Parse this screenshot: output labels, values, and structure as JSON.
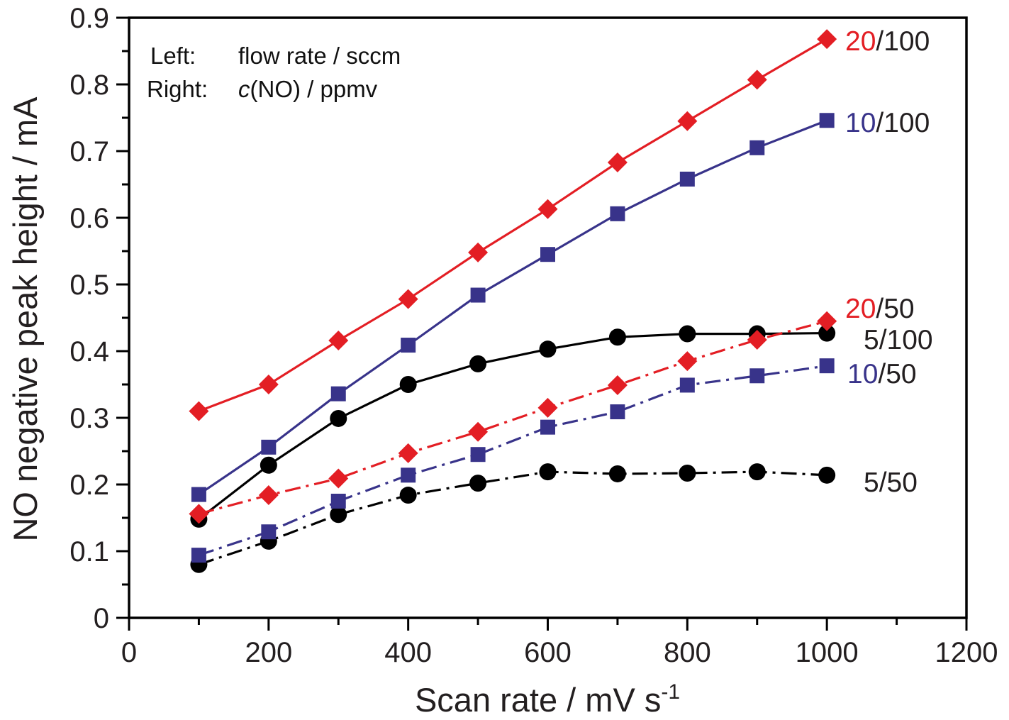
{
  "chart_data": {
    "type": "line",
    "title": "",
    "xlabel": "Scan rate / mV s",
    "xlabel_superscript": "-1",
    "ylabel": "NO negative peak height / mA",
    "xlim": [
      0,
      1200
    ],
    "ylim": [
      0,
      0.9
    ],
    "x_ticks": [
      0,
      200,
      400,
      600,
      800,
      1000,
      1200
    ],
    "x_tick_labels": [
      "0",
      "200",
      "400",
      "600",
      "800",
      "1000",
      "1200"
    ],
    "x_minor_step": 100,
    "y_ticks": [
      0,
      0.1,
      0.2,
      0.3,
      0.4,
      0.5,
      0.6,
      0.7,
      0.8,
      0.9
    ],
    "y_tick_labels": [
      "0",
      "0.1",
      "0.2",
      "0.3",
      "0.4",
      "0.5",
      "0.6",
      "0.7",
      "0.8",
      "0.9"
    ],
    "y_minor_step": 0.05,
    "grid": false,
    "legend": "inline-labels-right",
    "annotation": {
      "line1_key": "Left:",
      "line1_value": "flow rate / sccm",
      "line2_key": "Right:",
      "line2_italic": "c",
      "line2_value": "(NO) / ppmv"
    },
    "x": [
      100,
      200,
      300,
      400,
      500,
      600,
      700,
      800,
      900,
      1000
    ],
    "series": [
      {
        "name": "5/50",
        "flow": "5",
        "conc": "50",
        "marker": "circle",
        "color": "#000000",
        "line": "dash-dot",
        "values": [
          0.08,
          0.115,
          0.155,
          0.184,
          0.202,
          0.219,
          0.216,
          0.217,
          0.219,
          0.214
        ]
      },
      {
        "name": "5/100",
        "flow": "5",
        "conc": "100",
        "marker": "circle",
        "color": "#000000",
        "line": "solid",
        "values": [
          0.148,
          0.229,
          0.299,
          0.35,
          0.381,
          0.403,
          0.421,
          0.426,
          0.426,
          0.427
        ]
      },
      {
        "name": "10/50",
        "flow": "10",
        "conc": "50",
        "marker": "square",
        "color": "#38338a",
        "line": "dash-dot",
        "values": [
          0.094,
          0.129,
          0.175,
          0.214,
          0.245,
          0.286,
          0.309,
          0.349,
          0.363,
          0.378
        ]
      },
      {
        "name": "10/100",
        "flow": "10",
        "conc": "100",
        "marker": "square",
        "color": "#38338a",
        "line": "solid",
        "values": [
          0.185,
          0.256,
          0.336,
          0.409,
          0.484,
          0.545,
          0.606,
          0.658,
          0.705,
          0.746
        ]
      },
      {
        "name": "20/50",
        "flow": "20",
        "conc": "50",
        "marker": "diamond",
        "color": "#e31e24",
        "line": "dash-dot",
        "values": [
          0.156,
          0.184,
          0.209,
          0.247,
          0.279,
          0.315,
          0.349,
          0.385,
          0.417,
          0.445
        ]
      },
      {
        "name": "20/100",
        "flow": "20",
        "conc": "100",
        "marker": "diamond",
        "color": "#e31e24",
        "line": "solid",
        "values": [
          0.31,
          0.35,
          0.416,
          0.478,
          0.548,
          0.613,
          0.683,
          0.745,
          0.807,
          0.868
        ]
      }
    ]
  },
  "colors": {
    "text": "#231f20",
    "axis": "#000000",
    "red": "#e31e24",
    "blue": "#38338a",
    "black": "#000000"
  }
}
